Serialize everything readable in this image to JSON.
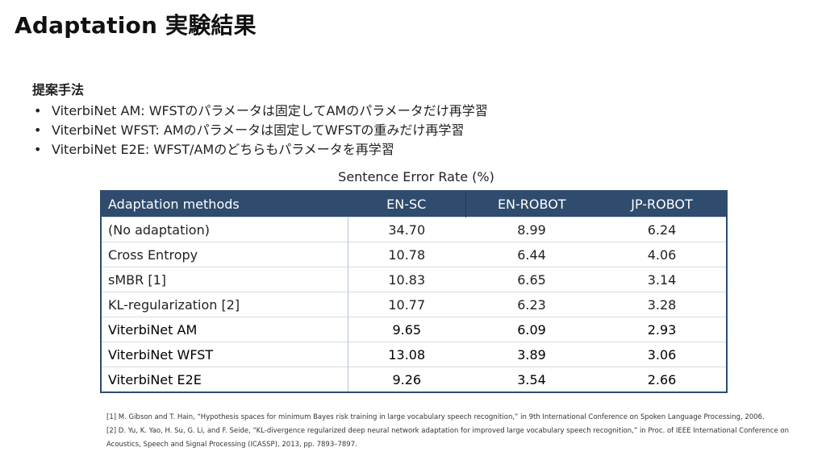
{
  "slide": {
    "title": "Adaptation 実験結果"
  },
  "proposal": {
    "heading": "提案手法",
    "bullets": [
      "ViterbiNet AM: WFSTのパラメータは固定してAMのパラメータだけ再学習",
      "ViterbiNet WFST: AMのパラメータは固定してWFSTの重みだけ再学習",
      "ViterbiNet E2E: WFST/AMのどちらもパラメータを再学習"
    ],
    "bullet_symbol": "•"
  },
  "table": {
    "caption": "Sentence Error Rate (%)",
    "header_color": "#2f4c6e",
    "columns": [
      "Adaptation methods",
      "EN-SC",
      "EN-ROBOT",
      "JP-ROBOT"
    ],
    "rows": [
      [
        "(No adaptation)",
        "34.70",
        "8.99",
        "6.24"
      ],
      [
        "Cross Entropy",
        "10.78",
        "6.44",
        "4.06"
      ],
      [
        "sMBR [1]",
        "10.83",
        "6.65",
        "3.14"
      ],
      [
        "KL-regularization [2]",
        "10.77",
        "6.23",
        "3.28"
      ],
      [
        "ViterbiNet AM",
        "9.65",
        "6.09",
        "2.93"
      ],
      [
        "ViterbiNet WFST",
        "13.08",
        "3.89",
        "3.06"
      ],
      [
        "ViterbiNet E2E",
        "9.26",
        "3.54",
        "2.66"
      ]
    ]
  },
  "references": [
    "[1] M. Gibson and T. Hain, “Hypothesis spaces for minimum Bayes risk training in large vocabulary speech recognition,” in 9th International Conference on Spoken Language Processing, 2006.",
    "[2] D. Yu, K. Yao, H. Su, G. Li, and F. Seide, “KL-divergence regularized deep neural network adaptation for improved large vocabulary speech recognition,” in Proc. of IEEE International Conference on Acoustics, Speech and Signal Processing (ICASSP), 2013, pp. 7893–7897."
  ]
}
